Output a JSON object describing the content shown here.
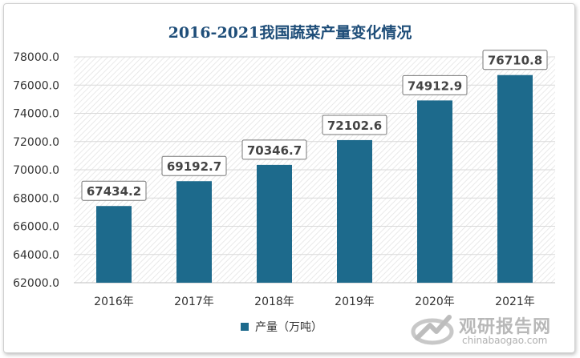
{
  "chart_data": {
    "type": "bar",
    "title": "2016-2021我国蔬菜产量变化情况",
    "categories": [
      "2016年",
      "2017年",
      "2018年",
      "2019年",
      "2020年",
      "2021年"
    ],
    "series": [
      {
        "name": "产量（万吨）",
        "values": [
          67434.2,
          69192.7,
          70346.7,
          72102.6,
          74912.9,
          76710.8
        ]
      }
    ],
    "data_labels": [
      "67434.2",
      "69192.7",
      "70346.7",
      "72102.6",
      "74912.9",
      "76710.8"
    ],
    "ylim": [
      62000,
      78000
    ],
    "yticks": [
      62000,
      64000,
      66000,
      68000,
      70000,
      72000,
      74000,
      76000,
      78000
    ],
    "ytick_labels": [
      "62000.0",
      "64000.0",
      "66000.0",
      "68000.0",
      "70000.0",
      "72000.0",
      "74000.0",
      "76000.0",
      "78000.0"
    ],
    "xlabel": "",
    "ylabel": "",
    "grid": true,
    "legend_position": "bottom",
    "bar_color": "#1d6a8c",
    "title_color": "#1f4e79"
  },
  "watermark": {
    "name": "观研报告网",
    "domain": "chinabaogao.com"
  }
}
